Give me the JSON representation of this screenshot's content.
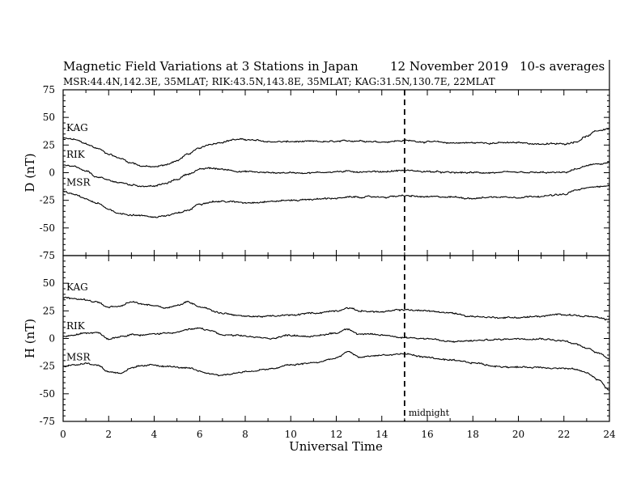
{
  "header": {
    "title": "Magnetic Field Variations at 3 Stations in Japan",
    "date": "12 November 2019",
    "averaging": "10-s averages",
    "stations": "MSR:44.4N,142.3E, 35MLAT;  RIK:43.5N,143.8E, 35MLAT;  KAG:31.5N,130.7E, 22MLAT"
  },
  "chart_data": [
    {
      "type": "line",
      "ylabel": "D (nT)",
      "xlabel": "",
      "xlim": [
        0,
        24
      ],
      "ylim": [
        -75,
        75
      ],
      "yticks": [
        75,
        50,
        25,
        0,
        -25,
        -50,
        -75
      ],
      "series": [
        {
          "name": "KAG",
          "x": [
            0,
            0.5,
            1,
            1.5,
            2,
            2.5,
            3,
            3.5,
            4,
            4.5,
            5,
            5.5,
            6,
            6.5,
            7,
            7.5,
            8,
            8.5,
            9,
            10,
            11,
            12,
            13,
            14,
            15,
            16,
            17,
            18,
            19,
            20,
            21,
            22,
            22.5,
            23,
            23.5,
            24
          ],
          "y": [
            31,
            30,
            26,
            22,
            17,
            13,
            9,
            6,
            5,
            7,
            11,
            17,
            22,
            26,
            28,
            30,
            30,
            29,
            28,
            28,
            28,
            28,
            29,
            28,
            29,
            28,
            27,
            27,
            27,
            27,
            26,
            26,
            28,
            33,
            38,
            40
          ]
        },
        {
          "name": "RIK",
          "x": [
            0,
            0.5,
            1,
            1.5,
            2,
            2.5,
            3,
            3.5,
            4,
            4.5,
            5,
            5.5,
            6,
            6.5,
            7,
            8,
            9,
            10,
            11,
            12,
            13,
            14,
            15,
            16,
            17,
            18,
            19,
            20,
            21,
            22,
            22.5,
            23,
            23.5,
            24
          ],
          "y": [
            7,
            5,
            1,
            -4,
            -7,
            -9,
            -11,
            -12,
            -12,
            -10,
            -6,
            -1,
            3,
            4,
            3,
            1,
            0,
            0,
            0,
            1,
            1,
            1,
            2,
            1,
            0,
            0,
            0,
            0,
            0,
            0,
            3,
            6,
            8,
            9
          ]
        },
        {
          "name": "MSR",
          "x": [
            0,
            0.5,
            1,
            1.5,
            2,
            2.5,
            3,
            3.5,
            4,
            4.5,
            5,
            5.5,
            6,
            6.5,
            7,
            8,
            9,
            10,
            11,
            12,
            13,
            14,
            15,
            16,
            17,
            18,
            19,
            20,
            21,
            22,
            22.5,
            23,
            23.5,
            24
          ],
          "y": [
            -17,
            -20,
            -24,
            -28,
            -33,
            -37,
            -38,
            -39,
            -40,
            -39,
            -37,
            -34,
            -28,
            -26,
            -26,
            -27,
            -26,
            -25,
            -24,
            -23,
            -22,
            -22,
            -21,
            -22,
            -22,
            -23,
            -22,
            -22,
            -21,
            -20,
            -16,
            -14,
            -12,
            -12
          ]
        }
      ]
    },
    {
      "type": "line",
      "ylabel": "H (nT)",
      "xlabel": "Universal Time",
      "xlim": [
        0,
        24
      ],
      "xticks": [
        0,
        2,
        4,
        6,
        8,
        10,
        12,
        14,
        16,
        18,
        20,
        22,
        24
      ],
      "ylim": [
        -75,
        75
      ],
      "yticks": [
        50,
        25,
        0,
        -25,
        -50,
        -75
      ],
      "series": [
        {
          "name": "KAG",
          "x": [
            0,
            0.5,
            1,
            1.5,
            2,
            2.5,
            3,
            3.5,
            4,
            4.5,
            5,
            5.5,
            6,
            7,
            8,
            9,
            10,
            11,
            12,
            12.5,
            13,
            14,
            15,
            16,
            17,
            18,
            19,
            20,
            21,
            22,
            23,
            24
          ],
          "y": [
            37,
            36,
            35,
            33,
            28,
            29,
            33,
            31,
            30,
            28,
            30,
            33,
            29,
            23,
            20,
            20,
            21,
            23,
            25,
            28,
            25,
            24,
            26,
            25,
            23,
            20,
            19,
            19,
            20,
            22,
            20,
            17
          ]
        },
        {
          "name": "RIK",
          "x": [
            0,
            0.5,
            1,
            1.5,
            2,
            2.5,
            3,
            3.5,
            4,
            4.5,
            5,
            5.5,
            6,
            6.5,
            7,
            8,
            9,
            10,
            11,
            12,
            12.5,
            13,
            14,
            15,
            16,
            17,
            18,
            19,
            20,
            21,
            22,
            22.5,
            23,
            23.5,
            24
          ],
          "y": [
            2,
            3,
            5,
            6,
            0,
            2,
            4,
            3,
            4,
            5,
            6,
            8,
            9,
            7,
            3,
            2,
            0,
            3,
            2,
            5,
            9,
            4,
            3,
            1,
            0,
            -3,
            -2,
            -1,
            0,
            0,
            -2,
            -5,
            -9,
            -13,
            -18
          ]
        },
        {
          "name": "MSR",
          "x": [
            0,
            0.5,
            1,
            1.5,
            2,
            2.5,
            3,
            3.5,
            4,
            4.5,
            5,
            5.5,
            6,
            6.5,
            7,
            8,
            9,
            10,
            11,
            12,
            12.5,
            13,
            14,
            15,
            16,
            17,
            18,
            19,
            20,
            21,
            22,
            22.5,
            23,
            23.5,
            24
          ],
          "y": [
            -25,
            -24,
            -22,
            -24,
            -30,
            -31,
            -27,
            -25,
            -24,
            -25,
            -26,
            -27,
            -30,
            -32,
            -33,
            -30,
            -28,
            -24,
            -22,
            -18,
            -12,
            -17,
            -15,
            -14,
            -17,
            -20,
            -22,
            -25,
            -26,
            -26,
            -27,
            -28,
            -31,
            -37,
            -47
          ]
        }
      ]
    }
  ],
  "markers": {
    "vline_x": 15,
    "vline_label": "midnight"
  }
}
